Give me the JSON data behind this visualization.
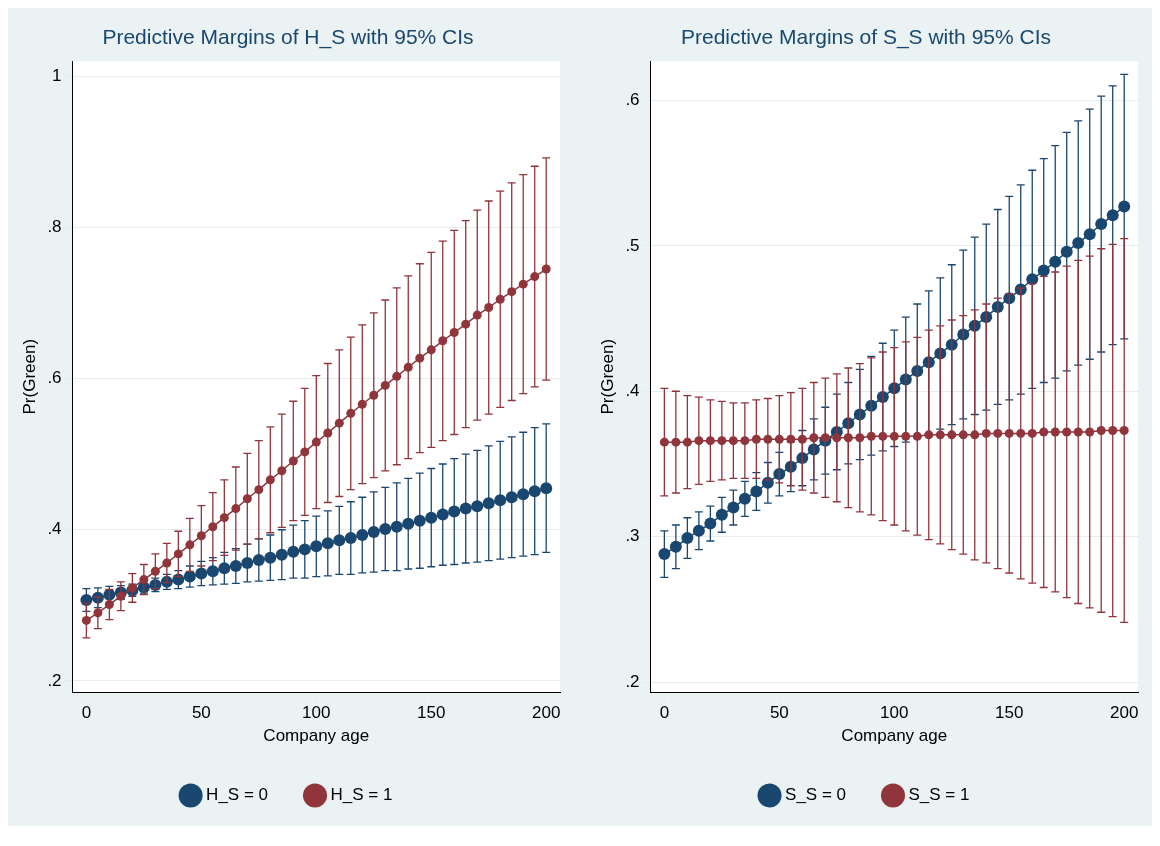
{
  "chart_data": [
    {
      "type": "line",
      "title": "Predictive Margins of H_S with 95% CIs",
      "xlabel": "Company age",
      "ylabel": "Pr(Green)",
      "x": [
        0,
        5,
        10,
        15,
        20,
        25,
        30,
        35,
        40,
        45,
        50,
        55,
        60,
        65,
        70,
        75,
        80,
        85,
        90,
        95,
        100,
        105,
        110,
        115,
        120,
        125,
        130,
        135,
        140,
        145,
        150,
        155,
        160,
        165,
        170,
        175,
        180,
        185,
        190,
        195,
        200
      ],
      "series": [
        {
          "name": "H_S = 0",
          "color": "#1a476f",
          "values": [
            0.307,
            0.31,
            0.314,
            0.317,
            0.32,
            0.324,
            0.327,
            0.331,
            0.334,
            0.338,
            0.342,
            0.345,
            0.349,
            0.352,
            0.356,
            0.36,
            0.363,
            0.367,
            0.371,
            0.374,
            0.378,
            0.382,
            0.386,
            0.389,
            0.393,
            0.397,
            0.401,
            0.404,
            0.408,
            0.412,
            0.416,
            0.42,
            0.424,
            0.428,
            0.431,
            0.435,
            0.439,
            0.443,
            0.447,
            0.451,
            0.455
          ],
          "errors": [
            0.015,
            0.013,
            0.011,
            0.009,
            0.008,
            0.008,
            0.009,
            0.01,
            0.012,
            0.014,
            0.016,
            0.018,
            0.021,
            0.023,
            0.025,
            0.028,
            0.03,
            0.033,
            0.035,
            0.038,
            0.04,
            0.043,
            0.045,
            0.048,
            0.05,
            0.053,
            0.055,
            0.058,
            0.06,
            0.063,
            0.065,
            0.067,
            0.07,
            0.072,
            0.074,
            0.076,
            0.078,
            0.08,
            0.082,
            0.084,
            0.085
          ]
        },
        {
          "name": "H_S = 1",
          "color": "#90353b",
          "values": [
            0.28,
            0.29,
            0.301,
            0.312,
            0.323,
            0.334,
            0.345,
            0.356,
            0.368,
            0.38,
            0.392,
            0.404,
            0.416,
            0.428,
            0.441,
            0.453,
            0.466,
            0.478,
            0.491,
            0.503,
            0.516,
            0.528,
            0.541,
            0.554,
            0.566,
            0.578,
            0.591,
            0.603,
            0.615,
            0.627,
            0.638,
            0.65,
            0.661,
            0.672,
            0.684,
            0.694,
            0.705,
            0.715,
            0.725,
            0.735,
            0.745
          ],
          "errors": [
            0.023,
            0.021,
            0.02,
            0.019,
            0.019,
            0.02,
            0.023,
            0.026,
            0.03,
            0.035,
            0.04,
            0.045,
            0.05,
            0.055,
            0.06,
            0.065,
            0.07,
            0.075,
            0.079,
            0.084,
            0.088,
            0.092,
            0.097,
            0.101,
            0.105,
            0.109,
            0.113,
            0.117,
            0.121,
            0.125,
            0.129,
            0.132,
            0.135,
            0.137,
            0.139,
            0.141,
            0.143,
            0.144,
            0.145,
            0.146,
            0.147
          ]
        }
      ],
      "xlim": [
        -6,
        206
      ],
      "xticks": [
        0,
        50,
        100,
        150,
        200
      ],
      "ylim": [
        0.185,
        1.02
      ],
      "yticks": [
        {
          "value": 0.2,
          "label": ".2"
        },
        {
          "value": 0.4,
          "label": ".4"
        },
        {
          "value": 0.6,
          "label": ".6"
        },
        {
          "value": 0.8,
          "label": ".8"
        },
        1
      ],
      "grid": "y",
      "legend": "bottom",
      "marker": "circle",
      "line_style": "solid"
    },
    {
      "type": "line",
      "title": "Predictive Margins of S_S with 95% CIs",
      "xlabel": "Company age",
      "ylabel": "Pr(Green)",
      "x": [
        0,
        5,
        10,
        15,
        20,
        25,
        30,
        35,
        40,
        45,
        50,
        55,
        60,
        65,
        70,
        75,
        80,
        85,
        90,
        95,
        100,
        105,
        110,
        115,
        120,
        125,
        130,
        135,
        140,
        145,
        150,
        155,
        160,
        165,
        170,
        175,
        180,
        185,
        190,
        195,
        200
      ],
      "series": [
        {
          "name": "S_S = 0",
          "color": "#1a476f",
          "values": [
            0.288,
            0.293,
            0.299,
            0.304,
            0.309,
            0.315,
            0.32,
            0.326,
            0.331,
            0.337,
            0.343,
            0.348,
            0.354,
            0.36,
            0.366,
            0.372,
            0.378,
            0.384,
            0.39,
            0.396,
            0.402,
            0.408,
            0.414,
            0.42,
            0.426,
            0.432,
            0.439,
            0.445,
            0.451,
            0.458,
            0.464,
            0.47,
            0.477,
            0.483,
            0.489,
            0.496,
            0.502,
            0.508,
            0.515,
            0.521,
            0.527
          ],
          "errors": [
            0.016,
            0.015,
            0.014,
            0.013,
            0.012,
            0.012,
            0.012,
            0.012,
            0.013,
            0.014,
            0.015,
            0.017,
            0.019,
            0.021,
            0.023,
            0.026,
            0.028,
            0.031,
            0.034,
            0.037,
            0.04,
            0.043,
            0.046,
            0.049,
            0.052,
            0.055,
            0.058,
            0.061,
            0.064,
            0.067,
            0.07,
            0.072,
            0.075,
            0.077,
            0.08,
            0.082,
            0.084,
            0.086,
            0.088,
            0.089,
            0.091
          ]
        },
        {
          "name": "S_S = 1",
          "color": "#90353b",
          "values": [
            0.365,
            0.365,
            0.365,
            0.366,
            0.366,
            0.366,
            0.366,
            0.366,
            0.367,
            0.367,
            0.367,
            0.367,
            0.367,
            0.368,
            0.368,
            0.368,
            0.368,
            0.368,
            0.369,
            0.369,
            0.369,
            0.369,
            0.369,
            0.37,
            0.37,
            0.37,
            0.37,
            0.37,
            0.371,
            0.371,
            0.371,
            0.371,
            0.371,
            0.372,
            0.372,
            0.372,
            0.372,
            0.372,
            0.373,
            0.373,
            0.373
          ],
          "errors": [
            0.037,
            0.035,
            0.032,
            0.03,
            0.028,
            0.027,
            0.026,
            0.026,
            0.027,
            0.028,
            0.03,
            0.032,
            0.035,
            0.038,
            0.041,
            0.044,
            0.048,
            0.051,
            0.054,
            0.058,
            0.061,
            0.065,
            0.068,
            0.072,
            0.075,
            0.079,
            0.082,
            0.086,
            0.089,
            0.093,
            0.096,
            0.1,
            0.103,
            0.107,
            0.11,
            0.114,
            0.118,
            0.121,
            0.125,
            0.128,
            0.132
          ]
        }
      ],
      "xlim": [
        -6,
        206
      ],
      "xticks": [
        0,
        50,
        100,
        150,
        200
      ],
      "ylim": [
        0.193,
        0.627
      ],
      "yticks": [
        {
          "value": 0.2,
          "label": ".2"
        },
        {
          "value": 0.3,
          "label": ".3"
        },
        {
          "value": 0.4,
          "label": ".4"
        },
        {
          "value": 0.5,
          "label": ".5"
        },
        {
          "value": 0.6,
          "label": ".6"
        }
      ],
      "grid": "y",
      "legend": "bottom",
      "marker": "circle",
      "line_style": "solid"
    }
  ]
}
